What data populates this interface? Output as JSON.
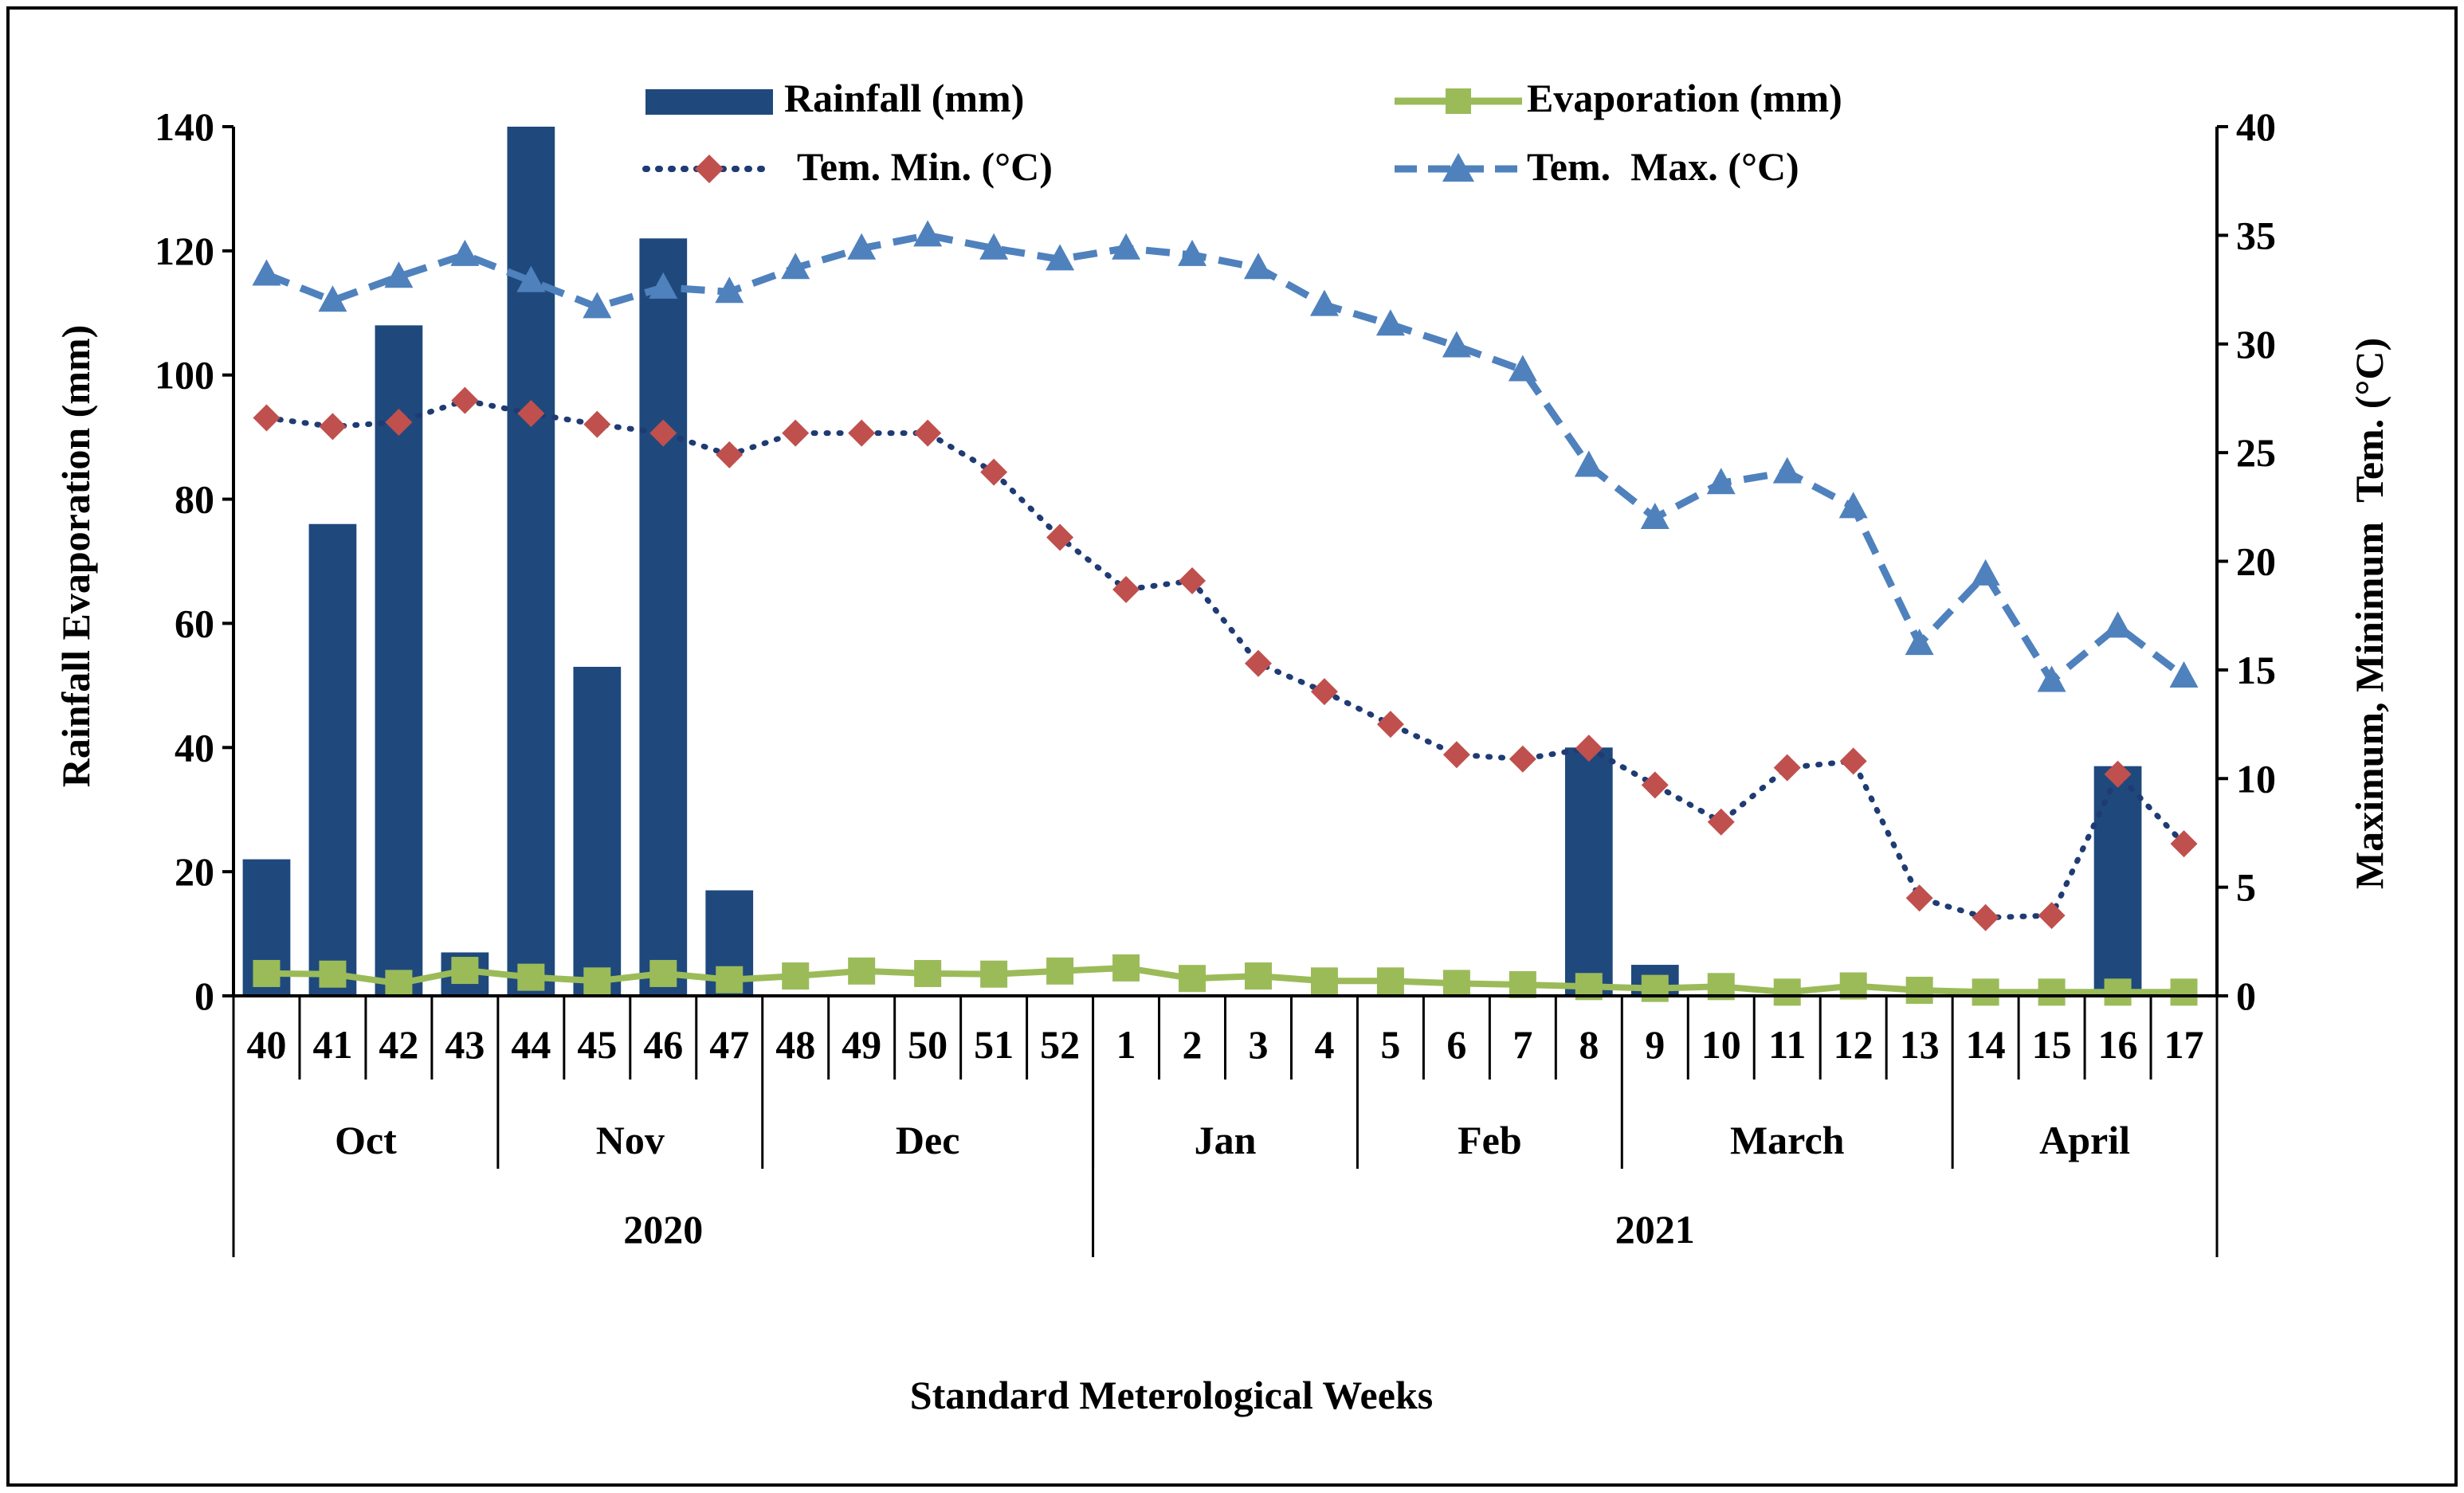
{
  "chart_data": {
    "type": "combo",
    "xlabel": "Standard Meterological Weeks",
    "ylabel_left": "Rainfall Evaporation (mm)",
    "ylabel_right": "Maximum, Minimum  Tem. (°C)",
    "ylim_left": [
      0,
      140
    ],
    "ylim_right": [
      0,
      40
    ],
    "yticks_left": [
      0,
      20,
      40,
      60,
      80,
      100,
      120,
      140
    ],
    "yticks_right": [
      0,
      5,
      10,
      15,
      20,
      25,
      30,
      35,
      40
    ],
    "categories": [
      "40",
      "41",
      "42",
      "43",
      "44",
      "45",
      "46",
      "47",
      "48",
      "49",
      "50",
      "51",
      "52",
      "1",
      "2",
      "3",
      "4",
      "5",
      "6",
      "7",
      "8",
      "9",
      "10",
      "11",
      "12",
      "13",
      "14",
      "15",
      "16",
      "17"
    ],
    "months": [
      {
        "label": "Oct",
        "start": 0,
        "end": 3
      },
      {
        "label": "Nov",
        "start": 4,
        "end": 7
      },
      {
        "label": "Dec",
        "start": 8,
        "end": 12
      },
      {
        "label": "Jan",
        "start": 13,
        "end": 16
      },
      {
        "label": "Feb",
        "start": 17,
        "end": 20
      },
      {
        "label": "March",
        "start": 21,
        "end": 25
      },
      {
        "label": "April",
        "start": 26,
        "end": 29
      }
    ],
    "years": [
      {
        "label": "2020",
        "start": 0,
        "end": 12
      },
      {
        "label": "2021",
        "start": 13,
        "end": 29
      }
    ],
    "series": [
      {
        "name": "Rainfall (mm)",
        "type": "bar",
        "axis": "left",
        "color": "#1f497d",
        "values": [
          22,
          76,
          108,
          7,
          140,
          53,
          122,
          17,
          0,
          0,
          0,
          0,
          0,
          0,
          0,
          0,
          0,
          0,
          0,
          0,
          40,
          5,
          0,
          0,
          0,
          0,
          0,
          0,
          37,
          0
        ]
      },
      {
        "name": "Evaporation (mm)",
        "type": "line",
        "axis": "left",
        "color": "#9bbb59",
        "marker": "square",
        "values": [
          3.6,
          3.5,
          2.0,
          4.1,
          3.0,
          2.4,
          3.6,
          2.6,
          3.2,
          4.0,
          3.6,
          3.5,
          4.0,
          4.5,
          2.8,
          3.2,
          2.4,
          2.4,
          2.0,
          1.8,
          1.5,
          1.2,
          1.5,
          0.6,
          1.6,
          0.9,
          0.6,
          0.6,
          0.6,
          0.6
        ]
      },
      {
        "name": "Tem. Min. (°C)",
        "type": "line",
        "axis": "right",
        "color": "#1f3b73",
        "dash": "dot",
        "marker": "diamond",
        "marker_color": "#c0504d",
        "values": [
          26.6,
          26.2,
          26.4,
          27.4,
          26.8,
          26.3,
          25.9,
          24.9,
          25.9,
          25.9,
          25.9,
          24.1,
          21.1,
          18.7,
          19.1,
          15.3,
          14.0,
          12.5,
          11.1,
          10.9,
          11.4,
          9.7,
          8.0,
          10.5,
          10.8,
          4.5,
          3.6,
          3.7,
          10.2,
          7.0
        ]
      },
      {
        "name": "Tem.  Max. (°C)",
        "type": "line",
        "axis": "right",
        "color": "#4f81bd",
        "dash": "dash",
        "marker": "triangle",
        "values": [
          33.2,
          32.0,
          33.1,
          34.1,
          32.9,
          31.7,
          32.6,
          32.4,
          33.5,
          34.4,
          35.0,
          34.4,
          33.9,
          34.4,
          34.1,
          33.5,
          31.8,
          30.9,
          29.9,
          28.8,
          24.4,
          22.0,
          23.6,
          24.1,
          22.5,
          16.2,
          19.4,
          14.5,
          17.0,
          14.7
        ]
      }
    ]
  }
}
